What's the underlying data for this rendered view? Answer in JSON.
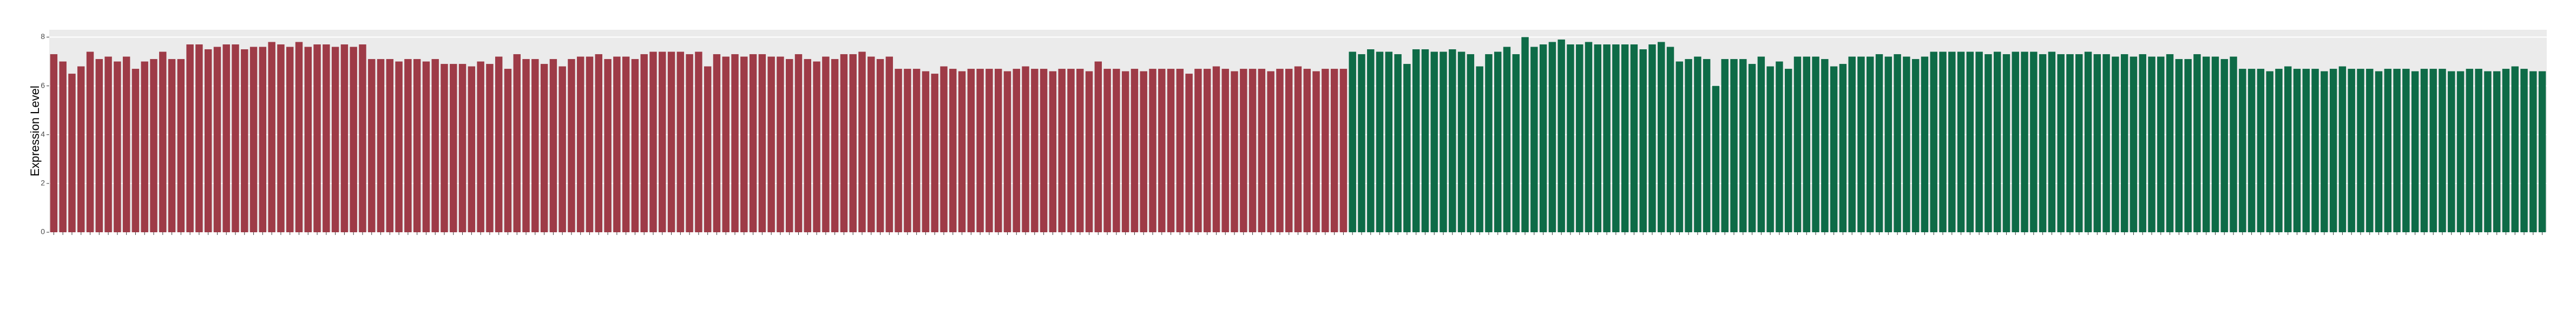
{
  "chart_data": {
    "type": "bar",
    "y_label": "Expression Level",
    "ylim": [
      0,
      8.3
    ],
    "yticks": [
      0,
      2,
      4,
      6,
      8
    ],
    "grid": true,
    "series": [
      {
        "color": "#9e3b47",
        "values": [
          7.3,
          7.0,
          6.5,
          6.8,
          7.4,
          7.1,
          7.2,
          7.0,
          7.2,
          6.7,
          7.0,
          7.1,
          7.4,
          7.1,
          7.1,
          7.7,
          7.7,
          7.5,
          7.6,
          7.7,
          7.7,
          7.5,
          7.6,
          7.6,
          7.8,
          7.7,
          7.6,
          7.8,
          7.6,
          7.7,
          7.7,
          7.6,
          7.7,
          7.6,
          7.7,
          7.1,
          7.1,
          7.1,
          7.0,
          7.1,
          7.1,
          7.0,
          7.1,
          6.9,
          6.9,
          6.9,
          6.8,
          7.0,
          6.9,
          7.2,
          6.7,
          7.3,
          7.1,
          7.1,
          6.9,
          7.1,
          6.8,
          7.1,
          7.2,
          7.2,
          7.3,
          7.1,
          7.2,
          7.2,
          7.1,
          7.3,
          7.4,
          7.4,
          7.4,
          7.4,
          7.3,
          7.4,
          6.8,
          7.3,
          7.2,
          7.3,
          7.2,
          7.3,
          7.3,
          7.2,
          7.2,
          7.1,
          7.3,
          7.1,
          7.0,
          7.2,
          7.1,
          7.3,
          7.3,
          7.4,
          7.2,
          7.1,
          7.2,
          6.7,
          6.7,
          6.7,
          6.6,
          6.5,
          6.8,
          6.7,
          6.6,
          6.7,
          6.7,
          6.7,
          6.7,
          6.6,
          6.7,
          6.8,
          6.7,
          6.7,
          6.6,
          6.7,
          6.7,
          6.7,
          6.6,
          7.0,
          6.7,
          6.7,
          6.6,
          6.7,
          6.6,
          6.7,
          6.7,
          6.7,
          6.7,
          6.5,
          6.7,
          6.7,
          6.8,
          6.7,
          6.6,
          6.7,
          6.7,
          6.7,
          6.6,
          6.7,
          6.7,
          6.8,
          6.7,
          6.6,
          6.7,
          6.7,
          6.7
        ]
      },
      {
        "color": "#0e6b47",
        "values": [
          7.4,
          7.3,
          7.5,
          7.4,
          7.4,
          7.3,
          6.9,
          7.5,
          7.5,
          7.4,
          7.4,
          7.5,
          7.4,
          7.3,
          6.8,
          7.3,
          7.4,
          7.6,
          7.3,
          8.0,
          7.6,
          7.7,
          7.8,
          7.9,
          7.7,
          7.7,
          7.8,
          7.7,
          7.7,
          7.7,
          7.7,
          7.7,
          7.5,
          7.7,
          7.8,
          7.6,
          7.0,
          7.1,
          7.2,
          7.1,
          6.0,
          7.1,
          7.1,
          7.1,
          6.9,
          7.2,
          6.8,
          7.0,
          6.7,
          7.2,
          7.2,
          7.2,
          7.1,
          6.8,
          6.9,
          7.2,
          7.2,
          7.2,
          7.3,
          7.2,
          7.3,
          7.2,
          7.1,
          7.2,
          7.4,
          7.4,
          7.4,
          7.4,
          7.4,
          7.4,
          7.3,
          7.4,
          7.3,
          7.4,
          7.4,
          7.4,
          7.3,
          7.4,
          7.3,
          7.3,
          7.3,
          7.4,
          7.3,
          7.3,
          7.2,
          7.3,
          7.2,
          7.3,
          7.2,
          7.2,
          7.3,
          7.1,
          7.1,
          7.3,
          7.2,
          7.2,
          7.1,
          7.2,
          6.7,
          6.7,
          6.7,
          6.6,
          6.7,
          6.8,
          6.7,
          6.7,
          6.7,
          6.6,
          6.7,
          6.8,
          6.7,
          6.7,
          6.7,
          6.6,
          6.7,
          6.7,
          6.7,
          6.6,
          6.7,
          6.7,
          6.7,
          6.6,
          6.6,
          6.7,
          6.7,
          6.6,
          6.6,
          6.7,
          6.8,
          6.7,
          6.6,
          6.6
        ]
      }
    ]
  }
}
